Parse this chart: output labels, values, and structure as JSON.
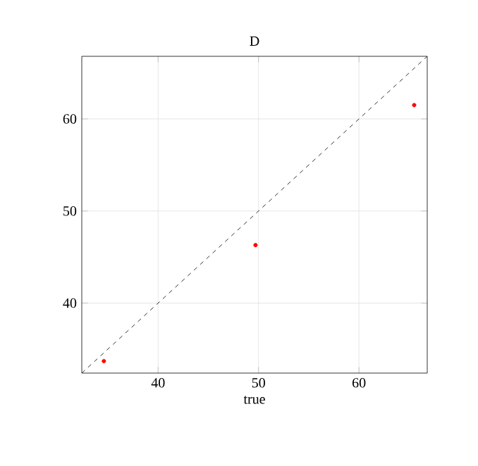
{
  "chart_data": {
    "type": "scatter",
    "title": "D",
    "xlabel": "true",
    "xlim": [
      32.4,
      66.8
    ],
    "ylim": [
      32.4,
      66.8
    ],
    "xticks": [
      40,
      50,
      60
    ],
    "yticks": [
      40,
      50,
      60
    ],
    "grid": true,
    "series": [
      {
        "marker": "circle",
        "color": "#ff0000",
        "x": [
          34.6,
          49.7,
          65.5
        ],
        "values": [
          33.7,
          46.3,
          61.5
        ]
      },
      {
        "type": "line",
        "color": "#000000",
        "line_style": "dashed",
        "marker": "none",
        "x": [
          32.4,
          66.8
        ],
        "values": [
          32.4,
          66.8
        ]
      }
    ]
  }
}
